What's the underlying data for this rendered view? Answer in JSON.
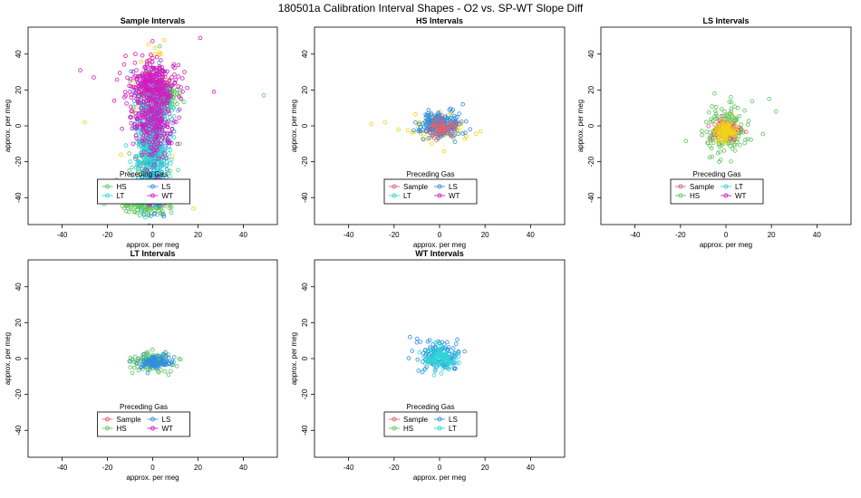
{
  "title": "180501a   Calibration Interval Shapes - O2 vs. SP-WT Slope Diff",
  "colors": {
    "Sample": "#e0606e",
    "HS": "#5fc65f",
    "LS": "#2f8ee0",
    "LT": "#2fd6d6",
    "WT": "#d21cc0",
    "extra": "#f2d21a"
  },
  "chart_data": [
    {
      "type": "scatter",
      "title": "Sample Intervals",
      "xlabel": "approx. per meg",
      "ylabel": "approx. per meg",
      "xlim": [
        -55,
        55
      ],
      "ylim": [
        -55,
        55
      ],
      "xticks": [
        -40,
        -20,
        0,
        20,
        40
      ],
      "yticks": [
        -40,
        -20,
        0,
        20,
        40
      ],
      "legend": {
        "title": "Preceding Gas",
        "position": "bottom-center",
        "entries": [
          "HS",
          "LS",
          "LT",
          "WT"
        ]
      },
      "series": [
        {
          "name": "extra",
          "clusters": [
            {
              "cx": 0,
              "cy": 20,
              "sx": 4,
              "sy": 12,
              "n": 80
            },
            {
              "cx": 0,
              "cy": -25,
              "sx": 4,
              "sy": 12,
              "n": 60
            }
          ],
          "points": [
            [
              -30,
              2
            ],
            [
              -14,
              -16
            ],
            [
              18,
              -46
            ],
            [
              3,
              41
            ]
          ]
        },
        {
          "name": "HS",
          "clusters": [
            {
              "cx": 7,
              "cy": 16,
              "sx": 2.5,
              "sy": 3,
              "n": 90
            },
            {
              "cx": -2,
              "cy": -45,
              "sx": 6,
              "sy": 2.5,
              "n": 120
            },
            {
              "cx": 0,
              "cy": 0,
              "sx": 4,
              "sy": 20,
              "n": 90
            }
          ],
          "points": [
            [
              49,
              17
            ],
            [
              -10,
              25
            ],
            [
              12,
              -10
            ],
            [
              -16,
              -30
            ]
          ]
        },
        {
          "name": "LS",
          "clusters": [
            {
              "cx": 0,
              "cy": -25,
              "sx": 3,
              "sy": 12,
              "n": 200
            },
            {
              "cx": -1,
              "cy": 5,
              "sx": 4,
              "sy": 12,
              "n": 160
            }
          ],
          "points": [
            [
              -12,
              -33
            ]
          ]
        },
        {
          "name": "LT",
          "clusters": [
            {
              "cx": 0,
              "cy": -15,
              "sx": 4,
              "sy": 12,
              "n": 220
            },
            {
              "cx": 0,
              "cy": 5,
              "sx": 4,
              "sy": 10,
              "n": 160
            }
          ],
          "points": [
            [
              -10,
              -20
            ]
          ]
        },
        {
          "name": "WT",
          "clusters": [
            {
              "cx": 0,
              "cy": 22,
              "sx": 5,
              "sy": 7,
              "n": 350
            },
            {
              "cx": 0,
              "cy": -38,
              "sx": 3.5,
              "sy": 3,
              "n": 140
            },
            {
              "cx": 0,
              "cy": 0,
              "sx": 4.5,
              "sy": 9,
              "n": 200
            }
          ],
          "points": [
            [
              -32,
              31
            ],
            [
              -26,
              27
            ],
            [
              21,
              49
            ],
            [
              27,
              19
            ],
            [
              -12,
              39
            ],
            [
              14,
              30
            ],
            [
              -17,
              14
            ]
          ]
        }
      ]
    },
    {
      "type": "scatter",
      "title": "HS Intervals",
      "xlabel": "approx. per meg",
      "ylabel": "approx. per meg",
      "xlim": [
        -55,
        55
      ],
      "ylim": [
        -55,
        55
      ],
      "xticks": [
        -40,
        -20,
        0,
        20,
        40
      ],
      "yticks": [
        -40,
        -20,
        0,
        20,
        40
      ],
      "legend": {
        "title": "Preceding Gas",
        "position": "bottom-center",
        "entries": [
          "Sample",
          "LS",
          "LT",
          "WT"
        ]
      },
      "series": [
        {
          "name": "extra",
          "clusters": [
            {
              "cx": 0,
              "cy": -2,
              "sx": 6,
              "sy": 3.5,
              "n": 80
            }
          ],
          "points": [
            [
              -30,
              1
            ],
            [
              -24,
              2
            ],
            [
              18,
              -3
            ],
            [
              -18,
              -2
            ]
          ]
        },
        {
          "name": "LS",
          "clusters": [
            {
              "cx": 0,
              "cy": 1,
              "sx": 4.5,
              "sy": 3.5,
              "n": 220
            }
          ],
          "points": []
        },
        {
          "name": "Sample",
          "clusters": [
            {
              "cx": 1,
              "cy": -1,
              "sx": 3,
              "sy": 2.5,
              "n": 70
            }
          ],
          "points": []
        }
      ]
    },
    {
      "type": "scatter",
      "title": "LS Intervals",
      "xlabel": "approx. per meg",
      "ylabel": "approx. per meg",
      "xlim": [
        -55,
        55
      ],
      "ylim": [
        -55,
        55
      ],
      "xticks": [
        -40,
        -20,
        0,
        20,
        40
      ],
      "yticks": [
        -40,
        -20,
        0,
        20,
        40
      ],
      "legend": {
        "title": "Preceding Gas",
        "position": "bottom-center",
        "entries": [
          "Sample",
          "LT",
          "HS",
          "WT"
        ]
      },
      "series": [
        {
          "name": "HS",
          "clusters": [
            {
              "cx": 0,
              "cy": -2,
              "sx": 4.5,
              "sy": 7,
              "n": 180
            }
          ],
          "points": [
            [
              19,
              15
            ],
            [
              22,
              8
            ],
            [
              -5,
              18
            ],
            [
              -3,
              -20
            ]
          ]
        },
        {
          "name": "Sample",
          "clusters": [
            {
              "cx": 0,
              "cy": -3,
              "sx": 3,
              "sy": 3,
              "n": 80
            }
          ],
          "points": []
        },
        {
          "name": "extra",
          "clusters": [
            {
              "cx": 0,
              "cy": -3,
              "sx": 2.5,
              "sy": 2.5,
              "n": 110
            }
          ],
          "points": []
        }
      ]
    },
    {
      "type": "scatter",
      "title": "LT Intervals",
      "xlabel": "approx. per meg",
      "ylabel": "approx. per meg",
      "xlim": [
        -55,
        55
      ],
      "ylim": [
        -55,
        55
      ],
      "xticks": [
        -40,
        -20,
        0,
        20,
        40
      ],
      "yticks": [
        -40,
        -20,
        0,
        20,
        40
      ],
      "legend": {
        "title": "Preceding Gas",
        "position": "bottom-center",
        "entries": [
          "Sample",
          "LS",
          "HS",
          "WT"
        ]
      },
      "series": [
        {
          "name": "HS",
          "clusters": [
            {
              "cx": 0,
              "cy": -2,
              "sx": 4.5,
              "sy": 2.5,
              "n": 110
            }
          ],
          "points": [
            [
              -9,
              -8
            ],
            [
              7,
              -9
            ],
            [
              8,
              -7
            ]
          ]
        },
        {
          "name": "LS",
          "clusters": [
            {
              "cx": 1,
              "cy": -2,
              "sx": 3.5,
              "sy": 2,
              "n": 100
            }
          ],
          "points": []
        }
      ]
    },
    {
      "type": "scatter",
      "title": "WT Intervals",
      "xlabel": "approx. per meg",
      "ylabel": "approx. per meg",
      "xlim": [
        -55,
        55
      ],
      "ylim": [
        -55,
        55
      ],
      "xticks": [
        -40,
        -20,
        0,
        20,
        40
      ],
      "yticks": [
        -40,
        -20,
        0,
        20,
        40
      ],
      "legend": {
        "title": "Preceding Gas",
        "position": "bottom-center",
        "entries": [
          "Sample",
          "LS",
          "HS",
          "LT"
        ]
      },
      "series": [
        {
          "name": "LS",
          "clusters": [
            {
              "cx": 0,
              "cy": 1,
              "sx": 5,
              "sy": 4,
              "n": 130
            }
          ],
          "points": [
            [
              -13,
              12
            ],
            [
              11,
              4
            ],
            [
              -10,
              9
            ]
          ]
        },
        {
          "name": "LT",
          "clusters": [
            {
              "cx": 0,
              "cy": 0,
              "sx": 3.5,
              "sy": 3,
              "n": 110
            }
          ],
          "points": []
        }
      ]
    }
  ]
}
